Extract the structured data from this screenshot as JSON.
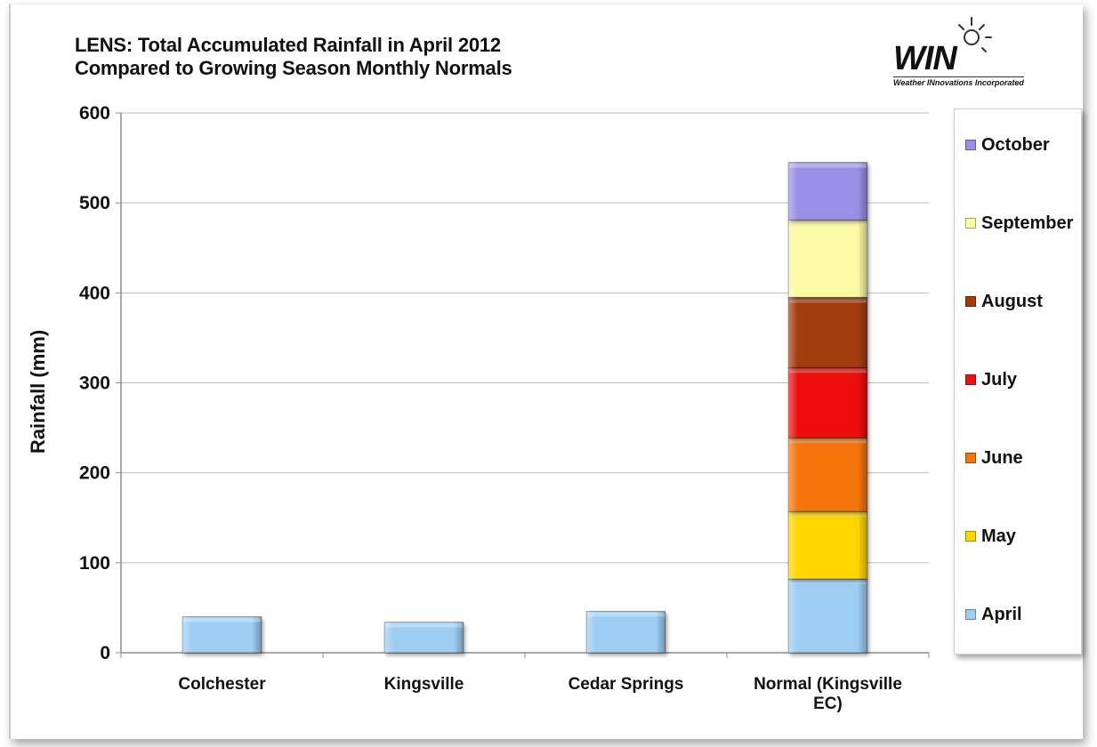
{
  "logo": {
    "word": "WIN",
    "tagline": "Weather INnovations Incorporated"
  },
  "chart_data": {
    "type": "bar",
    "stacked": true,
    "title": "LENS: Total Accumulated Rainfall in April 2012",
    "subtitle": "Compared to Growing Season Monthly Normals",
    "ylabel": "Rainfall (mm)",
    "xlabel": "",
    "ylim": [
      0,
      600
    ],
    "yticks": [
      0,
      100,
      200,
      300,
      400,
      500,
      600
    ],
    "grid": true,
    "legend_position": "right",
    "categories": [
      "Colchester",
      "Kingsville",
      "Cedar Springs",
      "Normal (Kingsville EC)"
    ],
    "category_label_lines": [
      [
        "Colchester"
      ],
      [
        "Kingsville"
      ],
      [
        "Cedar Springs"
      ],
      [
        "Normal (Kingsville",
        "EC)"
      ]
    ],
    "series": [
      {
        "name": "April",
        "color": "#9dcdf3",
        "values": [
          40,
          34,
          46,
          82
        ]
      },
      {
        "name": "May",
        "color": "#ffd500",
        "values": [
          0,
          0,
          0,
          75
        ]
      },
      {
        "name": "June",
        "color": "#f5740d",
        "values": [
          0,
          0,
          0,
          82
        ]
      },
      {
        "name": "July",
        "color": "#ee1111",
        "values": [
          0,
          0,
          0,
          78
        ]
      },
      {
        "name": "August",
        "color": "#a23a0c",
        "values": [
          0,
          0,
          0,
          78
        ]
      },
      {
        "name": "September",
        "color": "#fafaa4",
        "values": [
          0,
          0,
          0,
          86
        ]
      },
      {
        "name": "October",
        "color": "#9a8fe6",
        "values": [
          0,
          0,
          0,
          64
        ]
      }
    ]
  }
}
